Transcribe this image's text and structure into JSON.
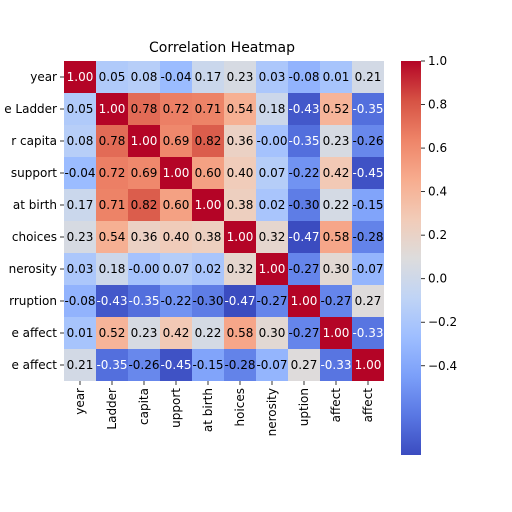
{
  "chart_data": {
    "type": "heatmap",
    "title": "Correlation Heatmap",
    "x_tick_labels": [
      "year",
      "Ladder",
      "capita",
      "upport",
      "at birth",
      "hoices",
      "nerosity",
      "uption",
      "affect",
      "affect"
    ],
    "y_tick_labels": [
      "year",
      "e Ladder",
      "r capita",
      "support",
      "at birth",
      "choices",
      "nerosity",
      "rruption",
      "e affect",
      "e affect"
    ],
    "matrix": [
      [
        1.0,
        0.05,
        0.08,
        -0.04,
        0.17,
        0.23,
        0.03,
        -0.08,
        0.01,
        0.21
      ],
      [
        0.05,
        1.0,
        0.78,
        0.72,
        0.71,
        0.54,
        0.18,
        -0.43,
        0.52,
        -0.35
      ],
      [
        0.08,
        0.78,
        1.0,
        0.69,
        0.82,
        0.36,
        -0.0,
        -0.35,
        0.23,
        -0.26
      ],
      [
        -0.04,
        0.72,
        0.69,
        1.0,
        0.6,
        0.4,
        0.07,
        -0.22,
        0.42,
        -0.45
      ],
      [
        0.17,
        0.71,
        0.82,
        0.6,
        1.0,
        0.38,
        0.02,
        -0.3,
        0.22,
        -0.15
      ],
      [
        0.23,
        0.54,
        0.36,
        0.4,
        0.38,
        1.0,
        0.32,
        -0.47,
        0.58,
        -0.28
      ],
      [
        0.03,
        0.18,
        -0.0,
        0.07,
        0.02,
        0.32,
        1.0,
        -0.27,
        0.3,
        -0.07
      ],
      [
        -0.08,
        -0.43,
        -0.35,
        -0.22,
        -0.3,
        -0.47,
        -0.27,
        1.0,
        -0.27,
        0.27
      ],
      [
        0.01,
        0.52,
        0.23,
        0.42,
        0.22,
        0.58,
        0.3,
        -0.27,
        1.0,
        -0.33
      ],
      [
        0.21,
        -0.35,
        -0.26,
        -0.45,
        -0.15,
        -0.28,
        -0.07,
        0.27,
        -0.33,
        1.0
      ]
    ],
    "cell_labels": [
      [
        "1.00",
        "0.05",
        "0.08",
        "-0.04",
        "0.17",
        "0.23",
        "0.03",
        "-0.08",
        "0.01",
        "0.21"
      ],
      [
        "0.05",
        "1.00",
        "0.78",
        "0.72",
        "0.71",
        "0.54",
        "0.18",
        "-0.43",
        "0.52",
        "-0.35"
      ],
      [
        "0.08",
        "0.78",
        "1.00",
        "0.69",
        "0.82",
        "0.36",
        "-0.00",
        "-0.35",
        "0.23",
        "-0.26"
      ],
      [
        "-0.04",
        "0.72",
        "0.69",
        "1.00",
        "0.60",
        "0.40",
        "0.07",
        "-0.22",
        "0.42",
        "-0.45"
      ],
      [
        "0.17",
        "0.71",
        "0.82",
        "0.60",
        "1.00",
        "0.38",
        "0.02",
        "-0.30",
        "0.22",
        "-0.15"
      ],
      [
        "0.23",
        "0.54",
        "0.36",
        "0.40",
        "0.38",
        "1.00",
        "0.32",
        "-0.47",
        "0.58",
        "-0.28"
      ],
      [
        "0.03",
        "0.18",
        "-0.00",
        "0.07",
        "0.02",
        "0.32",
        "1.00",
        "-0.27",
        "0.30",
        "-0.07"
      ],
      [
        "-0.08",
        "-0.43",
        "-0.35",
        "-0.22",
        "-0.30",
        "-0.47",
        "-0.27",
        "1.00",
        "-0.27",
        "0.27"
      ],
      [
        "0.01",
        "0.52",
        "0.23",
        "0.42",
        "0.22",
        "0.58",
        "0.30",
        "-0.27",
        "1.00",
        "-0.33"
      ],
      [
        "0.21",
        "-0.35",
        "-0.26",
        "-0.45",
        "-0.15",
        "-0.28",
        "-0.07",
        "0.27",
        "-0.33",
        "1.00"
      ]
    ],
    "color_scale": {
      "name": "coolwarm",
      "vmin": -0.47,
      "vmax": 1.0,
      "stops": [
        "#3b4cc0",
        "#5977e3",
        "#7b9ff9",
        "#9ebeff",
        "#c0d4f5",
        "#dddcdc",
        "#f2cbb7",
        "#f7ac8e",
        "#ee8468",
        "#d65244",
        "#b40426"
      ]
    },
    "colorbar": {
      "ticks": [
        -0.4,
        -0.2,
        0.0,
        0.2,
        0.4,
        0.6,
        0.8,
        1.0
      ],
      "tick_labels": [
        "−0.4",
        "−0.2",
        "0.0",
        "0.2",
        "0.4",
        "0.6",
        "0.8",
        "1.0"
      ]
    },
    "xlabel": "",
    "ylabel": "",
    "grid": false,
    "legend": "colorbar-right"
  }
}
